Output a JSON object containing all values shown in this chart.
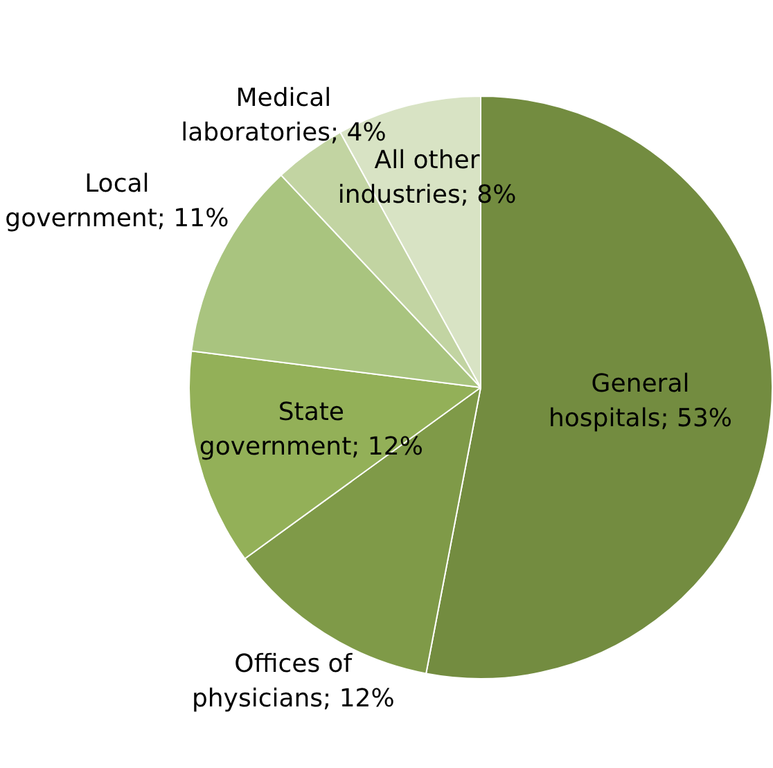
{
  "chart_data": {
    "type": "pie",
    "categories": [
      "General hospitals",
      "Offices of physicians",
      "State government",
      "Local government",
      "Medical laboratories",
      "All other industries"
    ],
    "values": [
      53,
      12,
      12,
      11,
      4,
      8
    ],
    "value_labels": [
      "53%",
      "12%",
      "12%",
      "11%",
      "4%",
      "8%"
    ],
    "colors": [
      "#738c40",
      "#7f9a48",
      "#93b058",
      "#a9c47f",
      "#c2d4a2",
      "#d8e3c4"
    ],
    "legend": false
  }
}
